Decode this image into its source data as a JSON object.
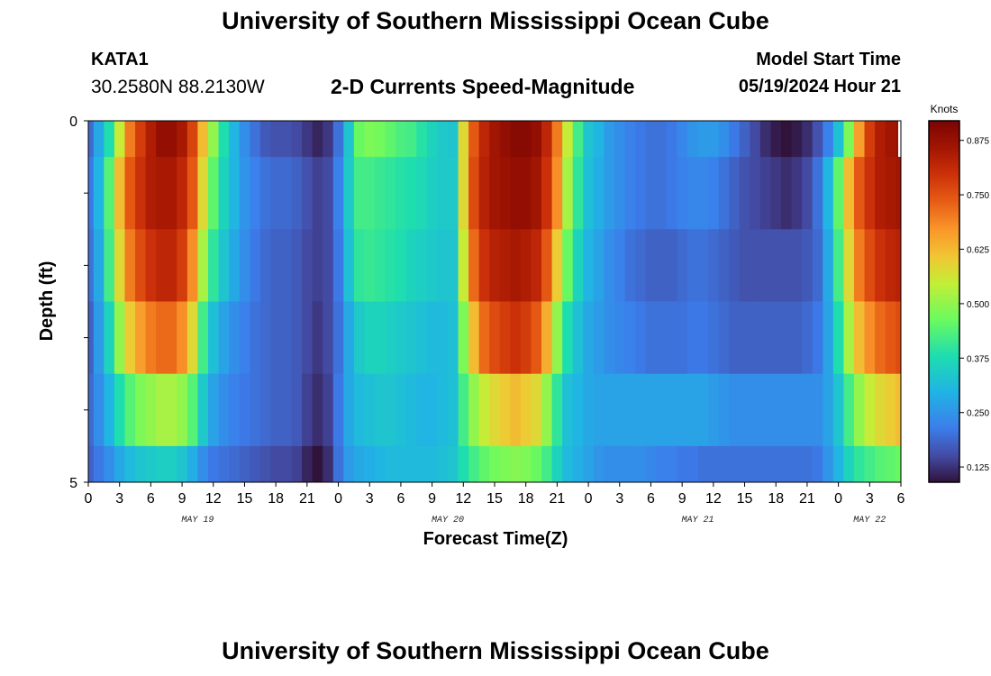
{
  "page": {
    "title": "University of Southern Mississippi Ocean Cube",
    "title_repeat": "University of Southern Mississippi Ocean Cube",
    "station": "KATA1",
    "coords": "30.2580N  88.2130W",
    "subtitle": "2-D Currents Speed-Magnitude",
    "model_start_label": "Model Start Time",
    "model_start_value": "05/19/2024 Hour 21"
  },
  "chart_data": {
    "type": "heatmap",
    "xlabel": "Forecast Time(Z)",
    "ylabel": "Depth (ft)",
    "ylim": [
      0,
      5
    ],
    "y_tick_labels": [
      "0",
      "5"
    ],
    "x_tick_labels": [
      "0",
      "3",
      "6",
      "9",
      "12",
      "15",
      "18",
      "21",
      "0",
      "3",
      "6",
      "9",
      "12",
      "15",
      "18",
      "21",
      "0",
      "3",
      "6",
      "9",
      "12",
      "15",
      "18",
      "21",
      "0",
      "3",
      "6"
    ],
    "date_labels": [
      "MAY 19",
      "MAY 20",
      "MAY 21",
      "MAY 22"
    ],
    "colorbar": {
      "label": "Knots",
      "ticks": [
        "0.125",
        "0.250",
        "0.375",
        "0.500",
        "0.625",
        "0.750",
        "0.875"
      ],
      "range": [
        0.09,
        0.92
      ]
    },
    "x_hours": [
      0,
      1,
      2,
      3,
      4,
      5,
      6,
      7,
      8,
      9,
      10,
      11,
      12,
      13,
      14,
      15,
      16,
      17,
      18,
      19,
      20,
      21,
      22,
      23,
      24,
      25,
      26,
      27,
      28,
      29,
      30,
      31,
      32,
      33,
      34,
      35,
      36,
      37,
      38,
      39,
      40,
      41,
      42,
      43,
      44,
      45,
      46,
      47,
      48,
      49,
      50,
      51,
      52,
      53,
      54,
      55,
      56,
      57,
      58,
      59,
      60,
      61,
      62,
      63,
      64,
      65,
      66,
      67,
      68,
      69,
      70,
      71,
      72,
      73,
      74,
      75,
      76,
      77,
      78
    ],
    "depth_rows": [
      {
        "depth": "0-0.5",
        "values": [
          0.19,
          0.28,
          0.38,
          0.55,
          0.7,
          0.78,
          0.84,
          0.88,
          0.88,
          0.85,
          0.77,
          0.62,
          0.5,
          0.38,
          0.3,
          0.24,
          0.2,
          0.17,
          0.16,
          0.16,
          0.15,
          0.13,
          0.11,
          0.13,
          0.2,
          0.33,
          0.46,
          0.48,
          0.47,
          0.45,
          0.43,
          0.42,
          0.39,
          0.36,
          0.34,
          0.33,
          0.58,
          0.74,
          0.82,
          0.86,
          0.88,
          0.9,
          0.9,
          0.88,
          0.82,
          0.7,
          0.55,
          0.42,
          0.33,
          0.3,
          0.26,
          0.24,
          0.22,
          0.21,
          0.2,
          0.2,
          0.21,
          0.23,
          0.25,
          0.26,
          0.26,
          0.24,
          0.21,
          0.18,
          0.15,
          0.12,
          0.1,
          0.09,
          0.1,
          0.12,
          0.16,
          0.22,
          0.32,
          0.48,
          0.66,
          0.78,
          0.84,
          0.86,
          0.87
        ]
      },
      {
        "depth": "0.5-1.5",
        "values": [
          0.21,
          0.3,
          0.44,
          0.62,
          0.74,
          0.8,
          0.84,
          0.85,
          0.85,
          0.82,
          0.74,
          0.58,
          0.45,
          0.36,
          0.3,
          0.25,
          0.22,
          0.2,
          0.19,
          0.19,
          0.18,
          0.16,
          0.14,
          0.15,
          0.22,
          0.34,
          0.42,
          0.42,
          0.41,
          0.4,
          0.39,
          0.38,
          0.37,
          0.35,
          0.34,
          0.34,
          0.58,
          0.76,
          0.83,
          0.86,
          0.87,
          0.88,
          0.88,
          0.86,
          0.8,
          0.68,
          0.52,
          0.4,
          0.32,
          0.29,
          0.26,
          0.24,
          0.22,
          0.21,
          0.2,
          0.2,
          0.21,
          0.22,
          0.23,
          0.23,
          0.22,
          0.2,
          0.18,
          0.16,
          0.15,
          0.14,
          0.13,
          0.12,
          0.13,
          0.15,
          0.2,
          0.3,
          0.45,
          0.62,
          0.74,
          0.8,
          0.84,
          0.85,
          0.86
        ]
      },
      {
        "depth": "1.5-2.5",
        "values": [
          0.2,
          0.28,
          0.42,
          0.58,
          0.7,
          0.76,
          0.8,
          0.82,
          0.82,
          0.78,
          0.68,
          0.52,
          0.4,
          0.33,
          0.28,
          0.24,
          0.21,
          0.19,
          0.18,
          0.18,
          0.17,
          0.15,
          0.14,
          0.15,
          0.21,
          0.32,
          0.4,
          0.41,
          0.4,
          0.39,
          0.38,
          0.36,
          0.35,
          0.34,
          0.33,
          0.33,
          0.55,
          0.72,
          0.8,
          0.83,
          0.84,
          0.85,
          0.84,
          0.82,
          0.74,
          0.6,
          0.46,
          0.36,
          0.3,
          0.27,
          0.24,
          0.22,
          0.2,
          0.19,
          0.18,
          0.18,
          0.18,
          0.19,
          0.2,
          0.2,
          0.19,
          0.18,
          0.17,
          0.16,
          0.16,
          0.16,
          0.16,
          0.16,
          0.16,
          0.17,
          0.19,
          0.28,
          0.42,
          0.58,
          0.7,
          0.76,
          0.8,
          0.82,
          0.83
        ]
      },
      {
        "depth": "2.5-3.5",
        "values": [
          0.18,
          0.26,
          0.36,
          0.5,
          0.6,
          0.66,
          0.7,
          0.72,
          0.72,
          0.68,
          0.58,
          0.42,
          0.32,
          0.27,
          0.24,
          0.22,
          0.2,
          0.19,
          0.18,
          0.18,
          0.17,
          0.15,
          0.13,
          0.15,
          0.2,
          0.28,
          0.34,
          0.36,
          0.36,
          0.35,
          0.34,
          0.33,
          0.32,
          0.31,
          0.31,
          0.32,
          0.48,
          0.62,
          0.72,
          0.76,
          0.78,
          0.8,
          0.78,
          0.74,
          0.64,
          0.5,
          0.38,
          0.32,
          0.28,
          0.26,
          0.24,
          0.23,
          0.22,
          0.21,
          0.2,
          0.2,
          0.2,
          0.2,
          0.21,
          0.21,
          0.2,
          0.19,
          0.18,
          0.18,
          0.18,
          0.18,
          0.18,
          0.18,
          0.18,
          0.19,
          0.21,
          0.27,
          0.38,
          0.52,
          0.62,
          0.68,
          0.72,
          0.74,
          0.76
        ]
      },
      {
        "depth": "3.5-4.5",
        "values": [
          0.19,
          0.24,
          0.3,
          0.38,
          0.44,
          0.48,
          0.5,
          0.52,
          0.52,
          0.5,
          0.44,
          0.34,
          0.27,
          0.24,
          0.22,
          0.21,
          0.2,
          0.19,
          0.18,
          0.18,
          0.17,
          0.14,
          0.12,
          0.14,
          0.21,
          0.28,
          0.31,
          0.32,
          0.33,
          0.33,
          0.32,
          0.31,
          0.3,
          0.3,
          0.31,
          0.32,
          0.42,
          0.5,
          0.55,
          0.58,
          0.6,
          0.62,
          0.6,
          0.58,
          0.5,
          0.4,
          0.32,
          0.3,
          0.28,
          0.27,
          0.27,
          0.27,
          0.27,
          0.27,
          0.27,
          0.27,
          0.27,
          0.27,
          0.27,
          0.27,
          0.26,
          0.25,
          0.24,
          0.24,
          0.24,
          0.24,
          0.24,
          0.24,
          0.24,
          0.24,
          0.24,
          0.27,
          0.33,
          0.42,
          0.5,
          0.55,
          0.58,
          0.6,
          0.62
        ]
      },
      {
        "depth": "4.5-5",
        "values": [
          0.18,
          0.21,
          0.24,
          0.28,
          0.31,
          0.33,
          0.34,
          0.35,
          0.35,
          0.33,
          0.29,
          0.24,
          0.21,
          0.2,
          0.19,
          0.18,
          0.17,
          0.16,
          0.15,
          0.15,
          0.14,
          0.11,
          0.09,
          0.12,
          0.2,
          0.26,
          0.28,
          0.29,
          0.3,
          0.31,
          0.31,
          0.31,
          0.31,
          0.31,
          0.32,
          0.33,
          0.38,
          0.42,
          0.45,
          0.47,
          0.48,
          0.49,
          0.48,
          0.46,
          0.42,
          0.36,
          0.31,
          0.29,
          0.27,
          0.25,
          0.24,
          0.24,
          0.24,
          0.24,
          0.23,
          0.22,
          0.22,
          0.21,
          0.21,
          0.2,
          0.2,
          0.2,
          0.2,
          0.2,
          0.2,
          0.2,
          0.2,
          0.2,
          0.2,
          0.2,
          0.21,
          0.25,
          0.3,
          0.36,
          0.4,
          0.42,
          0.44,
          0.45,
          0.46
        ]
      }
    ]
  }
}
